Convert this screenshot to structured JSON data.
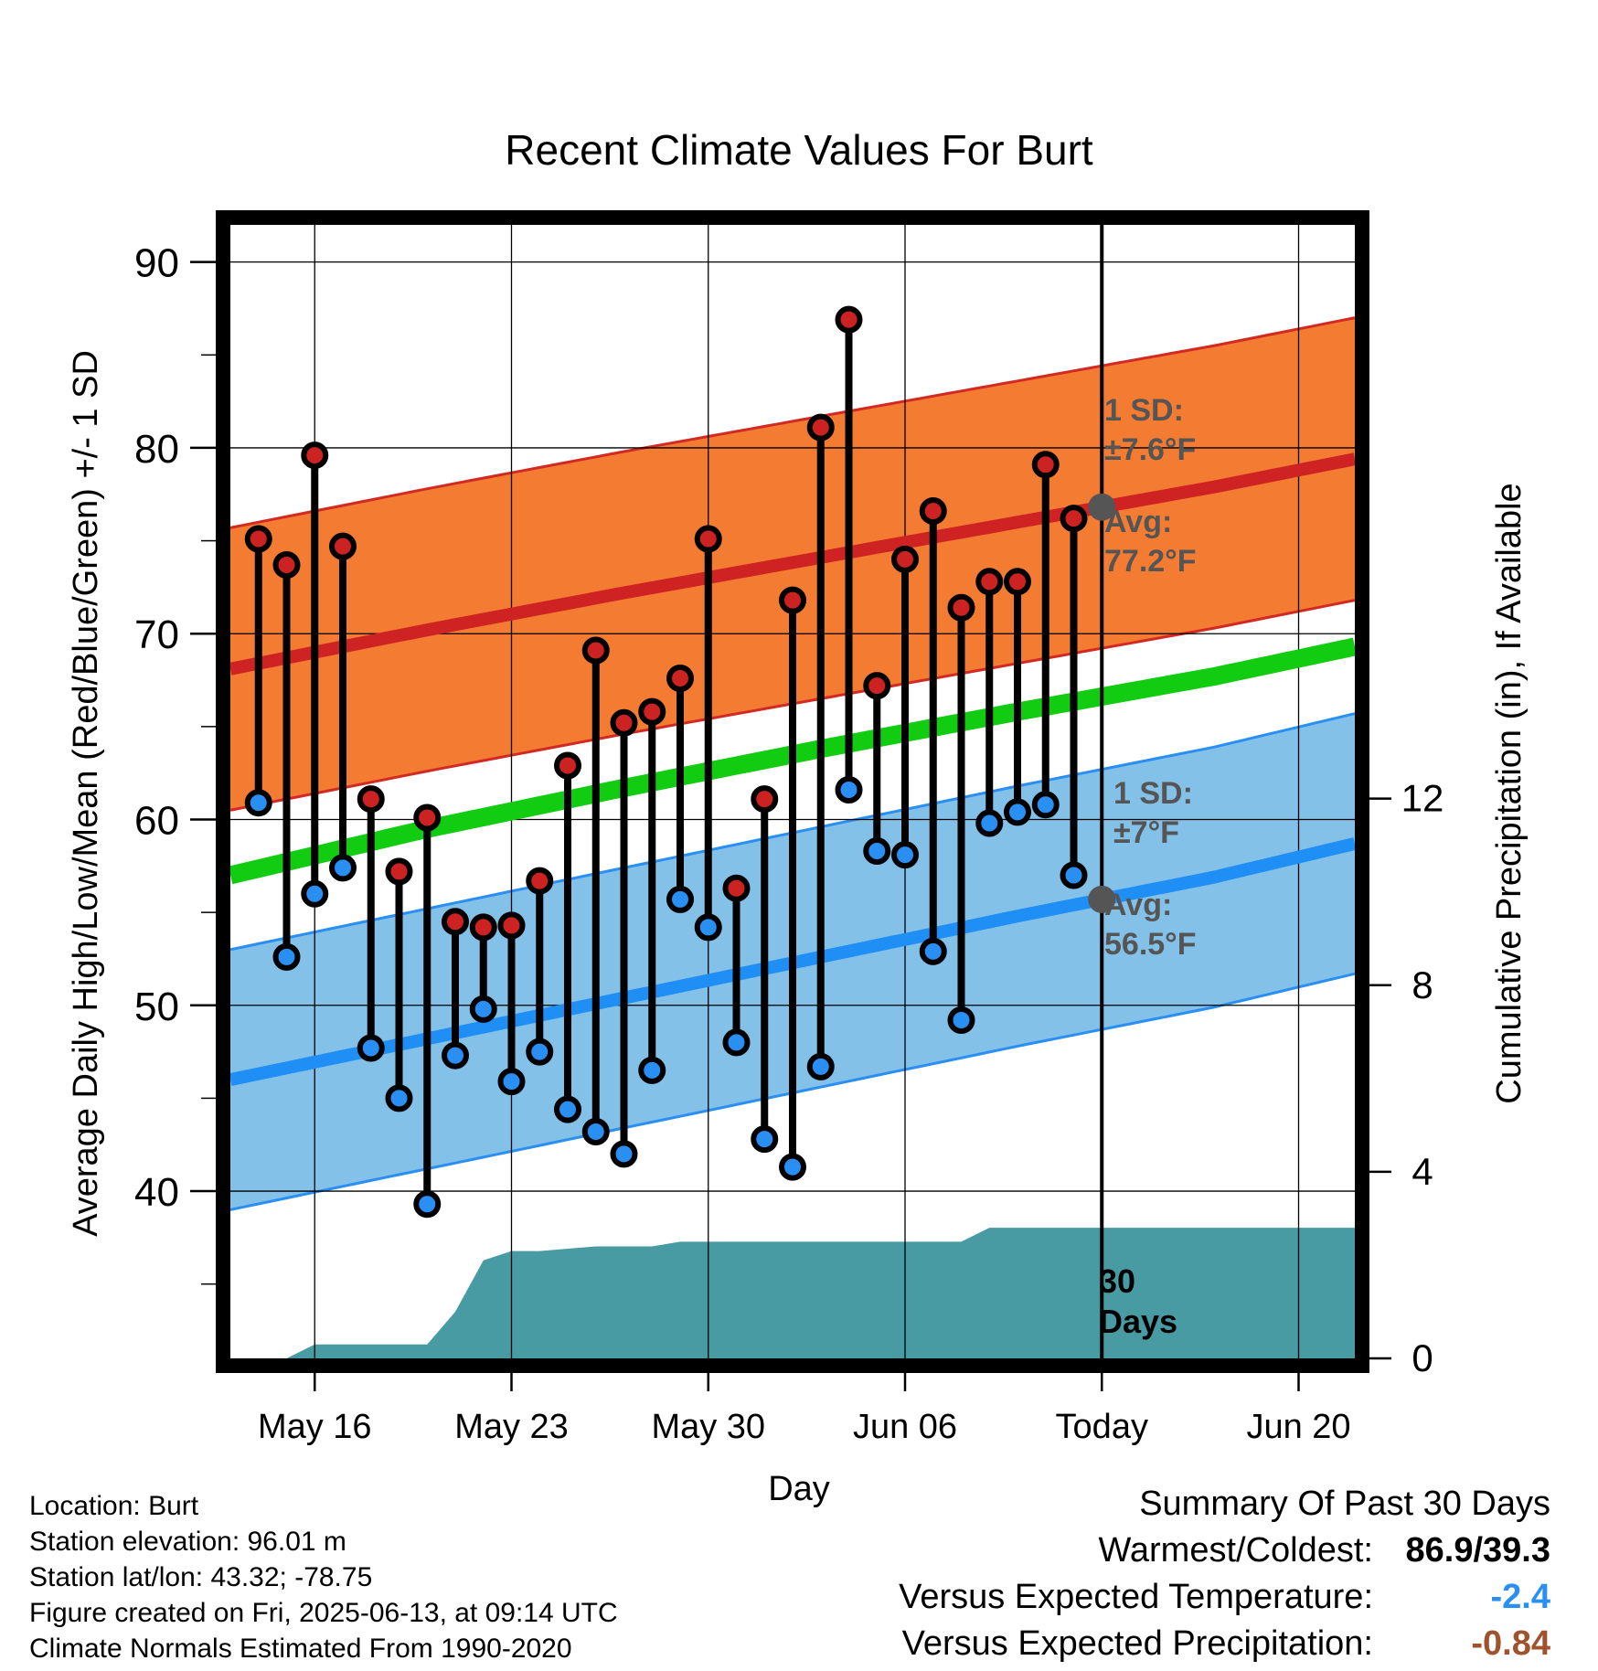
{
  "chart_data": {
    "type": "line",
    "title": "Recent Climate Values For Burt",
    "xlabel": "Day",
    "ylabel": "Average Daily High/Low/Mean (Red/Blue/Green) +/- 1 SD",
    "y2label": "Cumulative Precipitation (in), If Available",
    "x_tick_labels": [
      "May 16",
      "May 23",
      "May 30",
      "Jun 06",
      "Today",
      "Jun 20"
    ],
    "x_tick_dates": [
      "2025-05-16",
      "2025-05-23",
      "2025-05-30",
      "2025-06-06",
      "2025-06-13",
      "2025-06-20"
    ],
    "x_range": [
      "2025-05-13",
      "2025-06-22"
    ],
    "y_ticks": [
      40,
      50,
      60,
      70,
      80,
      90
    ],
    "ylim": [
      31,
      92
    ],
    "y2_ticks": [
      0,
      4,
      8,
      12
    ],
    "y2lim": [
      0,
      24.3
    ],
    "grid": true,
    "today": "2025-06-13",
    "dates": [
      "2025-05-14",
      "2025-05-15",
      "2025-05-16",
      "2025-05-17",
      "2025-05-18",
      "2025-05-19",
      "2025-05-20",
      "2025-05-21",
      "2025-05-22",
      "2025-05-23",
      "2025-05-24",
      "2025-05-25",
      "2025-05-26",
      "2025-05-27",
      "2025-05-28",
      "2025-05-29",
      "2025-05-30",
      "2025-05-31",
      "2025-06-01",
      "2025-06-02",
      "2025-06-03",
      "2025-06-04",
      "2025-06-05",
      "2025-06-06",
      "2025-06-07",
      "2025-06-08",
      "2025-06-09",
      "2025-06-10",
      "2025-06-11",
      "2025-06-12"
    ],
    "series": [
      {
        "name": "High",
        "color": "#cc2222",
        "values": [
          75.1,
          73.7,
          79.6,
          74.7,
          61.1,
          57.2,
          60.1,
          54.5,
          54.2,
          54.3,
          56.7,
          62.9,
          69.1,
          65.2,
          65.8,
          67.6,
          75.1,
          56.3,
          61.1,
          71.8,
          81.1,
          86.9,
          67.2,
          74.0,
          76.6,
          71.4,
          72.8,
          72.8,
          79.1,
          76.2
        ]
      },
      {
        "name": "Low",
        "color": "#2a8ff2",
        "values": [
          60.9,
          52.6,
          56.0,
          57.4,
          47.7,
          45.0,
          39.3,
          47.3,
          49.8,
          45.9,
          47.5,
          44.4,
          43.2,
          42.0,
          46.5,
          55.7,
          54.2,
          48.0,
          42.8,
          41.3,
          46.7,
          61.6,
          58.3,
          58.1,
          52.9,
          49.2,
          59.8,
          60.4,
          60.8,
          57.0
        ]
      }
    ],
    "normals": {
      "dates": [
        "2025-05-13",
        "2025-05-20",
        "2025-05-27",
        "2025-06-03",
        "2025-06-10",
        "2025-06-17",
        "2025-06-22"
      ],
      "avg_high": [
        68.1,
        70.2,
        72.2,
        74.1,
        76.0,
        77.9,
        79.4
      ],
      "avg_low": [
        46.0,
        48.2,
        50.4,
        52.6,
        54.8,
        56.9,
        58.7
      ],
      "mean": [
        57.0,
        59.5,
        61.7,
        63.8,
        65.8,
        67.7,
        69.3
      ],
      "high_sd": 7.6,
      "low_sd": 7.0
    },
    "precip_dates": [
      "2025-05-13",
      "2025-05-15",
      "2025-05-16",
      "2025-05-20",
      "2025-05-21",
      "2025-05-22",
      "2025-05-23",
      "2025-05-24",
      "2025-05-26",
      "2025-05-28",
      "2025-05-29",
      "2025-06-06",
      "2025-06-08",
      "2025-06-09",
      "2025-06-22"
    ],
    "precip_cumulative": [
      0.0,
      0.0,
      0.3,
      0.3,
      1.0,
      2.1,
      2.3,
      2.3,
      2.4,
      2.4,
      2.5,
      2.5,
      2.5,
      2.8,
      2.8
    ],
    "annotations": {
      "high_sd_label": "1 SD:",
      "high_sd_value": "±7.6°F",
      "high_avg_label": "Avg:",
      "high_avg_value": "77.2°F",
      "low_sd_label": "1 SD:",
      "low_sd_value": "±7°F",
      "low_avg_label": "Avg:",
      "low_avg_value": "56.5°F",
      "days_line1": "30",
      "days_line2": "Days"
    },
    "colors": {
      "high_band": "#f47b32",
      "high_band_edge": "#d22a22",
      "avg_high": "#cf2222",
      "low_band": "#84c1e8",
      "low_band_edge": "#2a8ff2",
      "avg_low": "#1f8ef5",
      "mean": "#11cc11",
      "precip": "#489ba3",
      "today_marker": "#555555",
      "annotation_text": "#555555"
    }
  },
  "info": {
    "location": "Location: Burt",
    "elevation": "Station elevation: 96.01 m",
    "latlon": "Station lat/lon: 43.32; -78.75",
    "created": "Figure created on Fri, 2025-06-13, at 09:14 UTC",
    "normals": "Climate Normals Estimated From 1990-2020"
  },
  "summary": {
    "title": "Summary Of Past 30 Days",
    "warm_cold_label": "Warmest/Coldest:",
    "warm_cold_value": "86.9/39.3",
    "temp_label": "Versus Expected Temperature:",
    "temp_value": "-2.4",
    "temp_color": "#2a8ff2",
    "precip_label": "Versus Expected Precipitation:",
    "precip_value": "-0.84",
    "precip_color": "#a0522d"
  }
}
